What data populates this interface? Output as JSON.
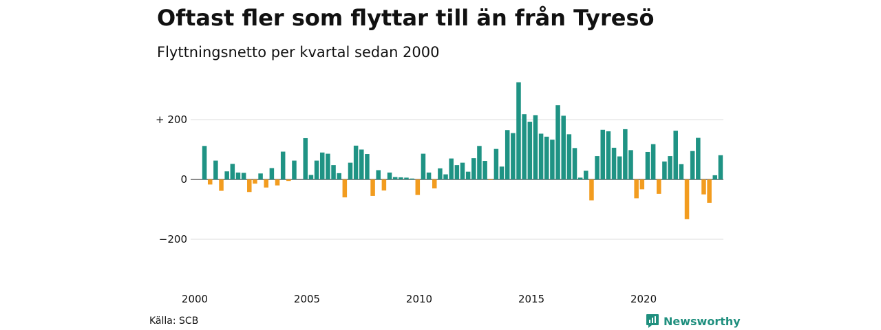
{
  "chart_data": {
    "type": "bar",
    "title": "Oftast fler som flyttar till än från Tyresö",
    "subtitle": "Flyttningsnetto per kvartal sedan 2000",
    "xlabel": "",
    "ylabel": "",
    "x_tick_labels": [
      "2000",
      "2005",
      "2010",
      "2015",
      "2020"
    ],
    "y_ticks": [
      200,
      0,
      -200
    ],
    "y_tick_labels": [
      "+ 200",
      "0",
      "−200"
    ],
    "ylim": [
      -300,
      330
    ],
    "grid": true,
    "legend": "none",
    "colors": {
      "positive": "#1f9384",
      "negative": "#f29c1f",
      "grid": "#dddddd"
    },
    "start_year": 2000,
    "values": [
      112,
      -17,
      63,
      -38,
      27,
      52,
      23,
      22,
      -42,
      -14,
      20,
      -27,
      38,
      -20,
      93,
      -5,
      63,
      0,
      138,
      15,
      63,
      90,
      86,
      48,
      21,
      -60,
      56,
      113,
      100,
      85,
      -55,
      31,
      -37,
      23,
      8,
      7,
      6,
      3,
      -52,
      86,
      23,
      -30,
      37,
      17,
      70,
      48,
      56,
      26,
      71,
      112,
      62,
      -2,
      102,
      43,
      165,
      155,
      325,
      218,
      193,
      215,
      153,
      143,
      133,
      248,
      213,
      151,
      105,
      6,
      29,
      -70,
      78,
      166,
      161,
      106,
      77,
      168,
      98,
      -63,
      -33,
      92,
      118,
      -48,
      60,
      78,
      163,
      51,
      -133,
      95,
      139,
      -50,
      -78,
      14,
      81
    ]
  },
  "footer": {
    "source": "Källa: SCB",
    "brand": "Newsworthy",
    "brand_icon": "newsworthy-logo-icon"
  }
}
